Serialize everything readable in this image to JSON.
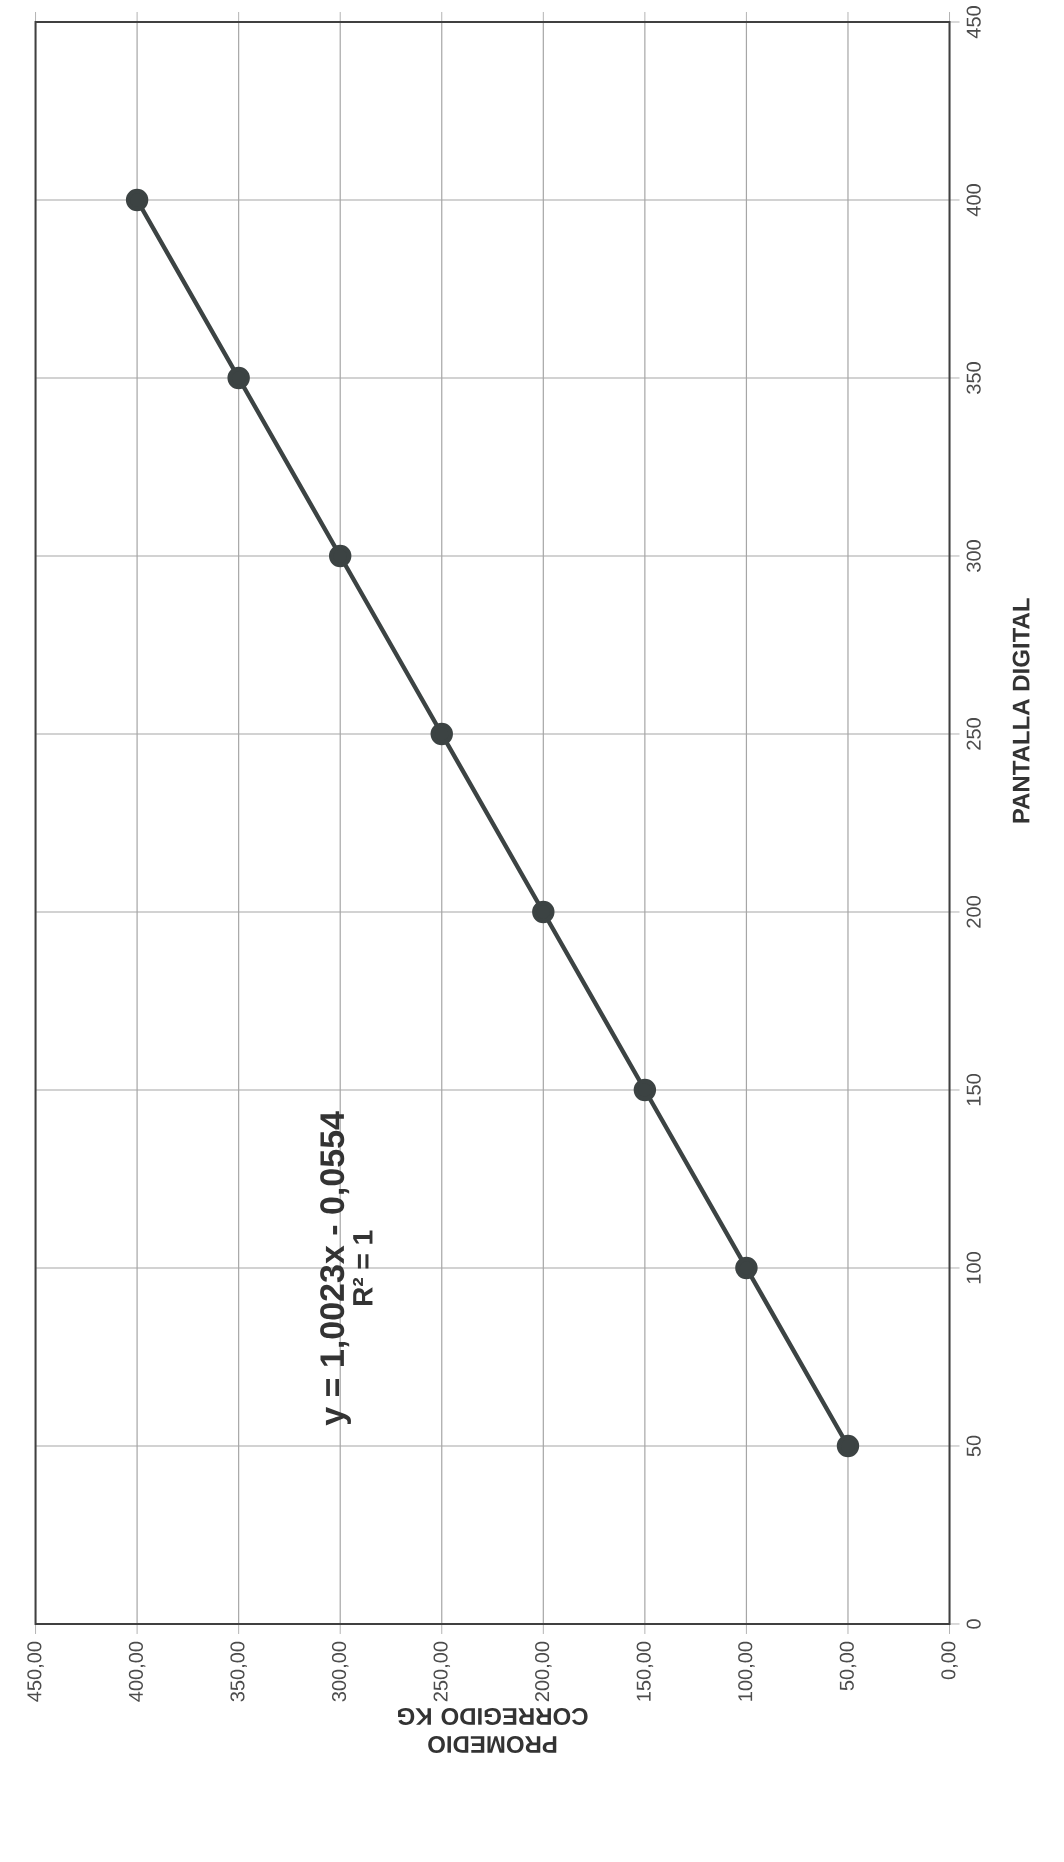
{
  "chart_data": {
    "type": "line",
    "xlabel": "PROMEDIO CORREGIDO KG",
    "ylabel": "PANTALLA DIGITAL",
    "annotations": [
      "y = 1,0023x - 0,0554",
      "R² = 1"
    ],
    "x": [
      50,
      100,
      150,
      200,
      250,
      300,
      350,
      400
    ],
    "series": [
      {
        "color": "#3c4343",
        "values": [
          50,
          100,
          150,
          200,
          250,
          300,
          350,
          400
        ]
      }
    ],
    "xlim": [
      450,
      0
    ],
    "xticks": [
      {
        "value": 0,
        "label": "0,00"
      },
      {
        "value": 50,
        "label": "50,00"
      },
      {
        "value": 100,
        "label": "100,00"
      },
      {
        "value": 150,
        "label": "150,00"
      },
      {
        "value": 200,
        "label": "200,00"
      },
      {
        "value": 250,
        "label": "250,00"
      },
      {
        "value": 300,
        "label": "300,00"
      },
      {
        "value": 350,
        "label": "350,00"
      },
      {
        "value": 400,
        "label": "400,00"
      },
      {
        "value": 450,
        "label": "450,00"
      }
    ],
    "ylim": [
      0,
      450
    ],
    "yticks": [
      0,
      50,
      100,
      150,
      200,
      250,
      300,
      350,
      400,
      450
    ],
    "grid": true,
    "marker": "circle",
    "line_style": "solid"
  }
}
